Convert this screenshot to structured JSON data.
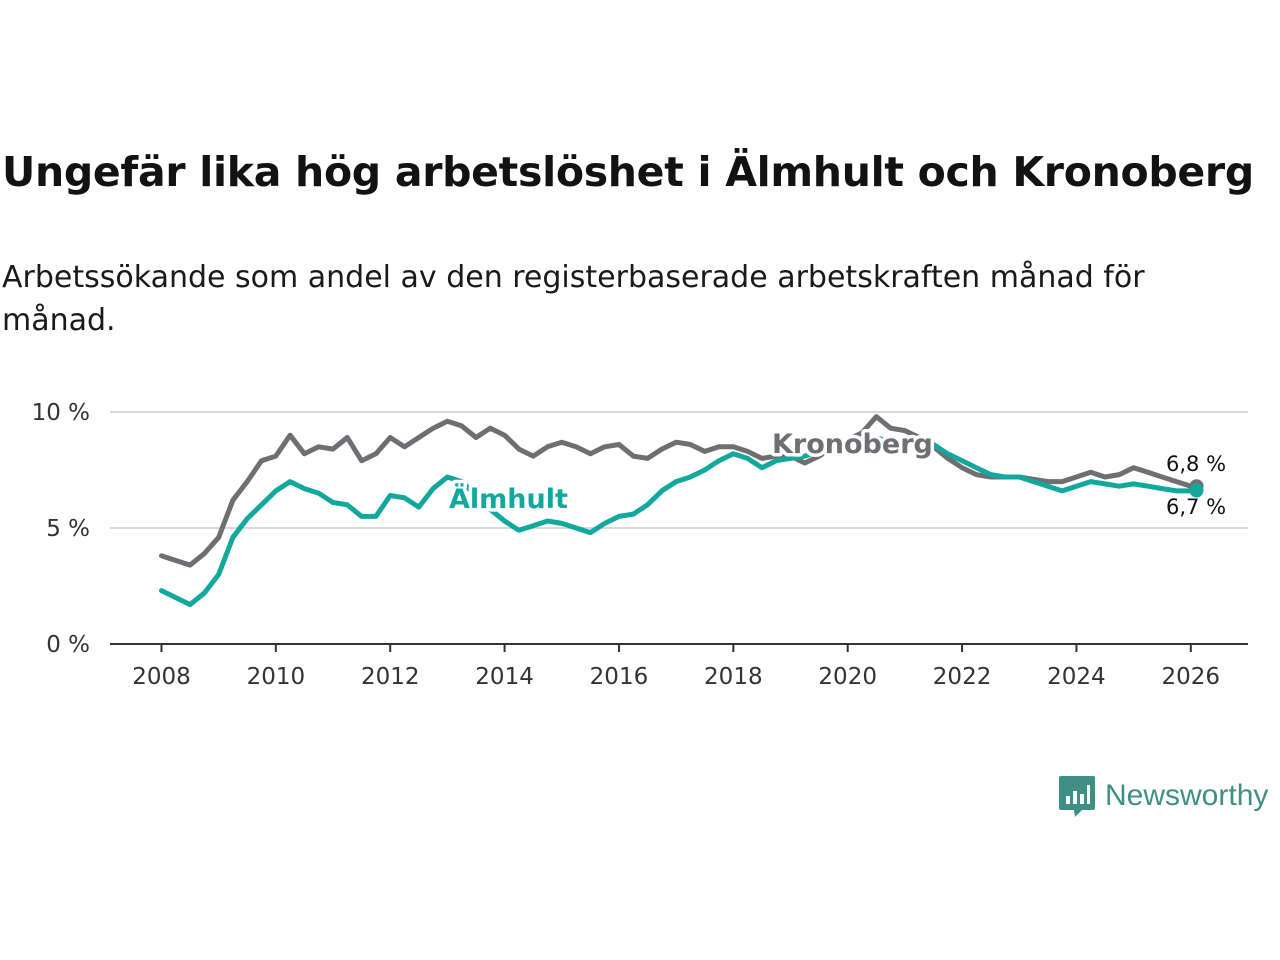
{
  "title": "Ungefär lika hög arbetslöshet i Älmhult och Kronoberg",
  "subtitle": "Arbetssökande som andel av den registerbaserade arbetskraften månad för månad.",
  "brand": {
    "name": "Newsworthy",
    "icon": "bar-chart-badge-icon"
  },
  "colors": {
    "almhult": "#13a89e",
    "kronoberg": "#6e6e73",
    "grid": "#d9d9d9",
    "axis": "#333333",
    "brand": "#3f8f84"
  },
  "chart_data": {
    "type": "line",
    "title": "Ungefär lika hög arbetslöshet i Älmhult och Kronoberg",
    "xlabel": "",
    "ylabel": "",
    "xlim": [
      2007.1,
      2027.0
    ],
    "ylim": [
      0,
      10
    ],
    "x_ticks": [
      2008,
      2010,
      2012,
      2014,
      2016,
      2018,
      2020,
      2022,
      2024,
      2026
    ],
    "x_tick_labels": [
      "2008",
      "2010",
      "2012",
      "2014",
      "2016",
      "2018",
      "2020",
      "2022",
      "2024",
      "2026"
    ],
    "y_ticks": [
      0,
      5,
      10
    ],
    "y_tick_labels": [
      "0 %",
      "5 %",
      "10 %"
    ],
    "grid": true,
    "series": [
      {
        "name": "Kronoberg",
        "label": "Kronoberg",
        "end_label": "6,8 %",
        "x": [
          2008.0,
          2008.25,
          2008.5,
          2008.75,
          2009.0,
          2009.25,
          2009.5,
          2009.75,
          2010.0,
          2010.25,
          2010.5,
          2010.75,
          2011.0,
          2011.25,
          2011.5,
          2011.75,
          2012.0,
          2012.25,
          2012.5,
          2012.75,
          2013.0,
          2013.25,
          2013.5,
          2013.75,
          2014.0,
          2014.25,
          2014.5,
          2014.75,
          2015.0,
          2015.25,
          2015.5,
          2015.75,
          2016.0,
          2016.25,
          2016.5,
          2016.75,
          2017.0,
          2017.25,
          2017.5,
          2017.75,
          2018.0,
          2018.25,
          2018.5,
          2018.75,
          2019.0,
          2019.25,
          2019.5,
          2019.75,
          2020.0,
          2020.25,
          2020.5,
          2020.75,
          2021.0,
          2021.25,
          2021.5,
          2021.75,
          2022.0,
          2022.25,
          2022.5,
          2022.75,
          2023.0,
          2023.25,
          2023.5,
          2023.75,
          2024.0,
          2024.25,
          2024.5,
          2024.75,
          2025.0,
          2025.25,
          2025.5,
          2025.75,
          2026.0,
          2026.1
        ],
        "values": [
          3.8,
          3.6,
          3.4,
          3.9,
          4.6,
          6.2,
          7.0,
          7.9,
          8.1,
          9.0,
          8.2,
          8.5,
          8.4,
          8.9,
          7.9,
          8.2,
          8.9,
          8.5,
          8.9,
          9.3,
          9.6,
          9.4,
          8.9,
          9.3,
          9.0,
          8.4,
          8.1,
          8.5,
          8.7,
          8.5,
          8.2,
          8.5,
          8.6,
          8.1,
          8.0,
          8.4,
          8.7,
          8.6,
          8.3,
          8.5,
          8.5,
          8.3,
          8.0,
          8.1,
          8.1,
          7.8,
          8.1,
          8.5,
          8.8,
          9.1,
          9.8,
          9.3,
          9.2,
          8.9,
          8.5,
          8.0,
          7.6,
          7.3,
          7.2,
          7.2,
          7.2,
          7.1,
          7.0,
          7.0,
          7.2,
          7.4,
          7.2,
          7.3,
          7.6,
          7.4,
          7.2,
          7.0,
          6.8,
          6.8
        ]
      },
      {
        "name": "Älmhult",
        "label": "Älmhult",
        "end_label": "6,7 %",
        "x": [
          2008.0,
          2008.25,
          2008.5,
          2008.75,
          2009.0,
          2009.25,
          2009.5,
          2009.75,
          2010.0,
          2010.25,
          2010.5,
          2010.75,
          2011.0,
          2011.25,
          2011.5,
          2011.75,
          2012.0,
          2012.25,
          2012.5,
          2012.75,
          2013.0,
          2013.25,
          2013.5,
          2013.75,
          2014.0,
          2014.25,
          2014.5,
          2014.75,
          2015.0,
          2015.25,
          2015.5,
          2015.75,
          2016.0,
          2016.25,
          2016.5,
          2016.75,
          2017.0,
          2017.25,
          2017.5,
          2017.75,
          2018.0,
          2018.25,
          2018.5,
          2018.75,
          2019.0,
          2019.25,
          2019.5,
          2019.75,
          2020.0,
          2020.25,
          2020.5,
          2020.75,
          2021.0,
          2021.25,
          2021.5,
          2021.75,
          2022.0,
          2022.25,
          2022.5,
          2022.75,
          2023.0,
          2023.25,
          2023.5,
          2023.75,
          2024.0,
          2024.25,
          2024.5,
          2024.75,
          2025.0,
          2025.25,
          2025.5,
          2025.75,
          2026.0,
          2026.1
        ],
        "values": [
          2.3,
          2.0,
          1.7,
          2.2,
          3.0,
          4.6,
          5.4,
          6.0,
          6.6,
          7.0,
          6.7,
          6.5,
          6.1,
          6.0,
          5.5,
          5.5,
          6.4,
          6.3,
          5.9,
          6.7,
          7.2,
          7.0,
          6.4,
          5.8,
          5.3,
          4.9,
          5.1,
          5.3,
          5.2,
          5.0,
          4.8,
          5.2,
          5.5,
          5.6,
          6.0,
          6.6,
          7.0,
          7.2,
          7.5,
          7.9,
          8.2,
          8.0,
          7.6,
          7.9,
          8.0,
          8.1,
          8.3,
          8.5,
          8.4,
          8.8,
          8.9,
          8.7,
          8.6,
          8.8,
          8.6,
          8.2,
          7.9,
          7.6,
          7.3,
          7.2,
          7.2,
          7.0,
          6.8,
          6.6,
          6.8,
          7.0,
          6.9,
          6.8,
          6.9,
          6.8,
          6.7,
          6.6,
          6.6,
          6.7
        ]
      }
    ]
  }
}
